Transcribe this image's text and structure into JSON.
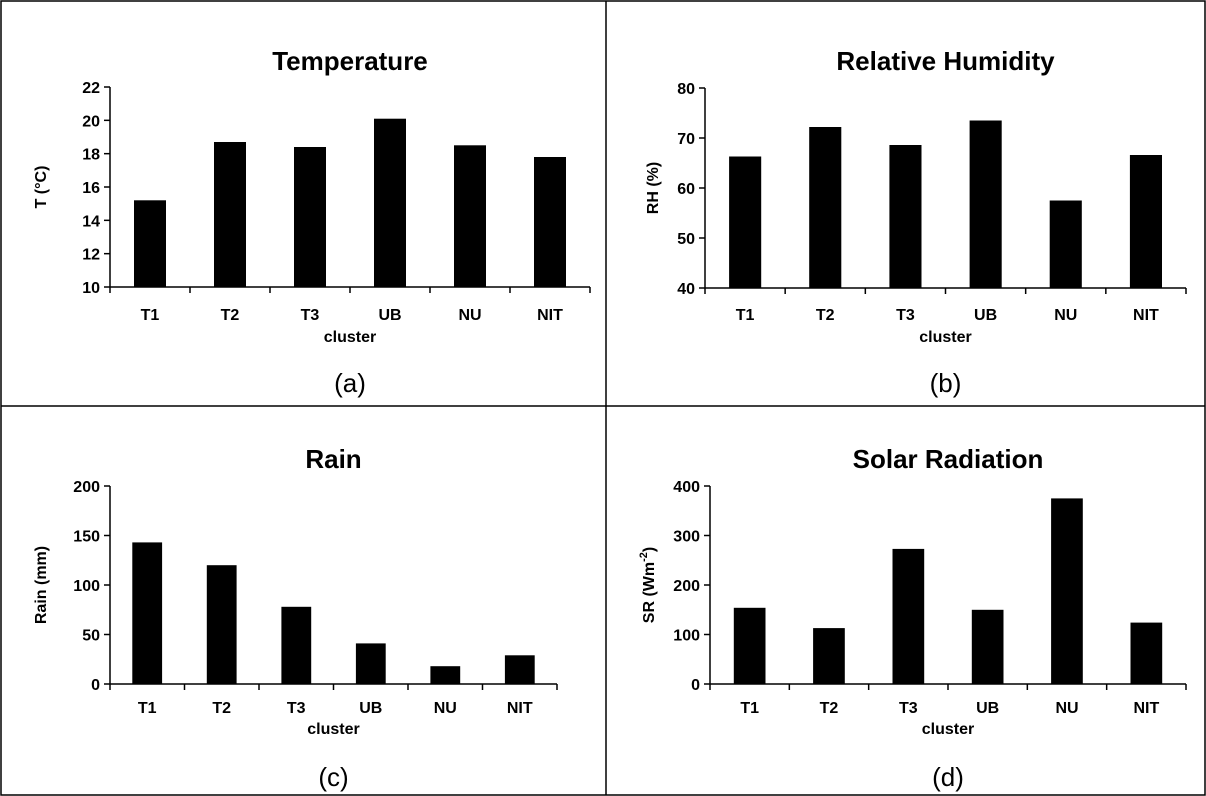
{
  "chart_data": [
    {
      "type": "bar",
      "title": "Temperature",
      "caption": "(a)",
      "xlabel": "cluster",
      "ylabel": "T (°C)",
      "categories": [
        "T1",
        "T2",
        "T3",
        "UB",
        "NU",
        "NIT"
      ],
      "values": [
        15.2,
        18.7,
        18.4,
        20.1,
        18.5,
        17.8
      ],
      "ylim": [
        10,
        22
      ],
      "yticks": [
        10,
        12,
        14,
        16,
        18,
        20,
        22
      ],
      "grid": false,
      "bar_color": "#000000"
    },
    {
      "type": "bar",
      "title": "Relative Humidity",
      "caption": "(b)",
      "xlabel": "cluster",
      "ylabel": "RH (%)",
      "categories": [
        "T1",
        "T2",
        "T3",
        "UB",
        "NU",
        "NIT"
      ],
      "values": [
        66.3,
        72.2,
        68.6,
        73.5,
        57.5,
        66.6
      ],
      "ylim": [
        40,
        80
      ],
      "yticks": [
        40,
        50,
        60,
        70,
        80
      ],
      "grid": false,
      "bar_color": "#000000"
    },
    {
      "type": "bar",
      "title": "Rain",
      "caption": "(c)",
      "xlabel": "cluster",
      "ylabel": "Rain (mm)",
      "categories": [
        "T1",
        "T2",
        "T3",
        "UB",
        "NU",
        "NIT"
      ],
      "values": [
        143,
        120,
        78,
        41,
        18,
        29
      ],
      "ylim": [
        0,
        200
      ],
      "yticks": [
        0,
        50,
        100,
        150,
        200
      ],
      "grid": false,
      "bar_color": "#000000"
    },
    {
      "type": "bar",
      "title": "Solar Radiation",
      "caption": "(d)",
      "xlabel": "cluster",
      "ylabel": "SR (Wm-2)",
      "ylabel_base": "SR (Wm",
      "ylabel_sup": "-2",
      "ylabel_end": ")",
      "categories": [
        "T1",
        "T2",
        "T3",
        "UB",
        "NU",
        "NIT"
      ],
      "values": [
        154,
        113,
        273,
        150,
        375,
        124
      ],
      "ylim": [
        0,
        400
      ],
      "yticks": [
        0,
        100,
        200,
        300,
        400
      ],
      "grid": false,
      "bar_color": "#000000"
    }
  ]
}
